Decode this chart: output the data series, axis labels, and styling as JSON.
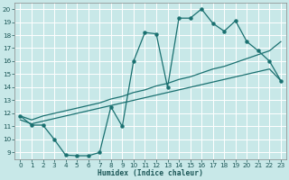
{
  "xlabel": "Humidex (Indice chaleur)",
  "xlim": [
    -0.5,
    23.5
  ],
  "ylim": [
    8.5,
    20.5
  ],
  "xticks": [
    0,
    1,
    2,
    3,
    4,
    5,
    6,
    7,
    8,
    9,
    10,
    11,
    12,
    13,
    14,
    15,
    16,
    17,
    18,
    19,
    20,
    21,
    22,
    23
  ],
  "yticks": [
    9,
    10,
    11,
    12,
    13,
    14,
    15,
    16,
    17,
    18,
    19,
    20
  ],
  "bg_color": "#c8e8e8",
  "grid_color": "#b0d8d8",
  "line_color": "#1a7070",
  "curve_main_x": [
    0,
    1,
    2,
    3,
    4,
    5,
    6,
    7,
    8,
    9,
    10,
    11,
    12,
    13,
    14,
    15,
    16,
    17,
    18,
    19,
    20,
    21,
    22,
    23
  ],
  "curve_main_y": [
    11.8,
    11.1,
    11.1,
    10.0,
    8.8,
    8.75,
    8.75,
    9.0,
    12.5,
    11.0,
    16.0,
    18.2,
    18.1,
    14.0,
    19.3,
    19.3,
    20.0,
    18.9,
    18.3,
    19.1,
    17.5,
    16.8,
    16.0,
    14.5
  ],
  "curve_diag1_x": [
    0,
    1,
    2,
    3,
    4,
    5,
    6,
    7,
    8,
    9,
    10,
    11,
    12,
    13,
    14,
    15,
    16,
    17,
    18,
    19,
    20,
    21,
    22,
    23
  ],
  "curve_diag1_y": [
    11.8,
    11.5,
    11.8,
    12.0,
    12.2,
    12.4,
    12.6,
    12.8,
    13.1,
    13.3,
    13.6,
    13.8,
    14.1,
    14.3,
    14.6,
    14.8,
    15.1,
    15.4,
    15.6,
    15.9,
    16.2,
    16.5,
    16.8,
    17.5
  ],
  "curve_diag2_x": [
    0,
    1,
    2,
    3,
    4,
    5,
    6,
    7,
    8,
    9,
    10,
    11,
    12,
    13,
    14,
    15,
    16,
    17,
    18,
    19,
    20,
    21,
    22,
    23
  ],
  "curve_diag2_y": [
    11.5,
    11.2,
    11.4,
    11.6,
    11.8,
    12.0,
    12.2,
    12.4,
    12.6,
    12.8,
    13.0,
    13.2,
    13.4,
    13.6,
    13.8,
    14.0,
    14.2,
    14.4,
    14.6,
    14.8,
    15.0,
    15.2,
    15.4,
    14.5
  ]
}
